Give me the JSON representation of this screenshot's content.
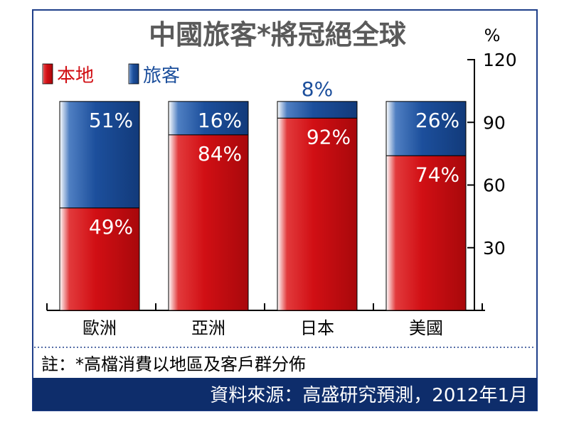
{
  "chart_data": {
    "type": "bar",
    "stacked": true,
    "title": "中國旅客*將冠絕全球",
    "unit_label": "%",
    "categories": [
      "歐洲",
      "亞洲",
      "日本",
      "美國"
    ],
    "series": [
      {
        "name": "本地",
        "values": [
          49,
          84,
          92,
          74
        ],
        "labels": [
          "49%",
          "84%",
          "92%",
          "74%"
        ]
      },
      {
        "name": "旅客",
        "values": [
          51,
          16,
          8,
          26
        ],
        "labels": [
          "51%",
          "16%",
          "8%",
          "26%"
        ]
      }
    ],
    "y_axis": {
      "position": "right",
      "ylim": [
        0,
        120
      ],
      "ticks": [
        30,
        60,
        90,
        120
      ],
      "grid": false
    },
    "legend_position": "top-left",
    "note": "註：*高檔消費以地區及客戶群分佈",
    "source": "資料來源：高盛研究預測，2012年1月"
  },
  "colors": {
    "local": "#d10f14",
    "tourist": "#1c4f9c",
    "title": "#5a5a5a",
    "tourist_text": "#1c4f9c",
    "footer_bg": "#0e2d6b",
    "frame": "#1f3f8a"
  }
}
